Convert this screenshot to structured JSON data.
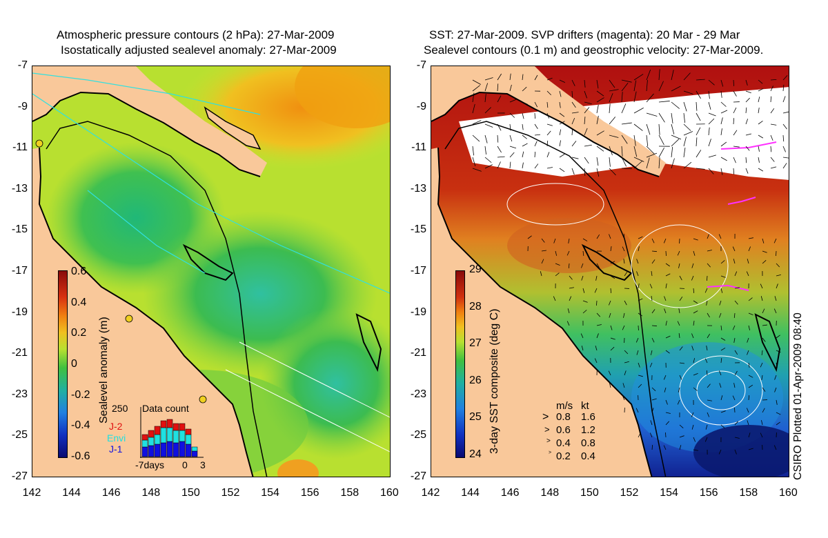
{
  "left_panel": {
    "title_line1": "Atmospheric pressure contours (2 hPa): 27-Mar-2009",
    "title_line2": "Isostatically adjusted sealevel anomaly: 27-Mar-2009",
    "colorbar": {
      "label": "Sealevel anomaly (m)",
      "ticks": [
        "0.6",
        "0.4",
        "0.2",
        "0",
        "-0.2",
        "-0.4",
        "-0.6"
      ]
    },
    "inset": {
      "title": "Data count",
      "ymax_label": "250",
      "legend": [
        {
          "label": "J-2",
          "color": "#e01010"
        },
        {
          "label": "Envi",
          "color": "#20e0e0"
        },
        {
          "label": "J-1",
          "color": "#1010e0"
        }
      ],
      "xlabel_left": "-7days",
      "xlabel_mid": "0",
      "xlabel_right": "3"
    }
  },
  "right_panel": {
    "title_line1": "SST: 27-Mar-2009. SVP drifters (magenta): 20 Mar - 29 Mar",
    "title_line2": "Sealevel contours (0.1 m) and geostrophic velocity: 27-Mar-2009.",
    "colorbar": {
      "label": "3-day SST composite (deg C)",
      "ticks": [
        "29",
        "28",
        "27",
        "26",
        "25",
        "24"
      ]
    },
    "vector_legend": {
      "header_ms": "m/s",
      "header_kt": "kt",
      "rows": [
        {
          "ms": "0.8",
          "kt": "1.6"
        },
        {
          "ms": "0.6",
          "kt": "1.2"
        },
        {
          "ms": "0.4",
          "kt": "0.8"
        },
        {
          "ms": "0.2",
          "kt": "0.4"
        }
      ]
    }
  },
  "axes": {
    "y_ticks": [
      "-7",
      "-9",
      "-11",
      "-13",
      "-15",
      "-17",
      "-19",
      "-21",
      "-23",
      "-25",
      "-27"
    ],
    "x_ticks": [
      "142",
      "144",
      "146",
      "148",
      "150",
      "152",
      "154",
      "156",
      "158",
      "160"
    ]
  },
  "credit": "CSIRO Plotted 01-Apr-2009 08:40",
  "colors": {
    "land": "#f9c89a",
    "sla_green": "#4cc24c",
    "sla_yellow": "#d8e830",
    "sst_red": "#b01010",
    "sst_blue": "#1040c0"
  }
}
